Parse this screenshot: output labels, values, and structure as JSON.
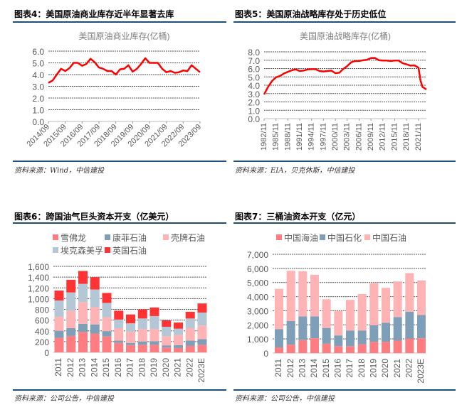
{
  "colors": {
    "rule": "#1F4E79",
    "line": "#FF0000"
  },
  "charts_meta": [
    {
      "label": "图表4：",
      "title": "美国原油商业库存近半年显著去库",
      "source": "资料来源：Wind，中信建投"
    },
    {
      "label": "图表5：",
      "title": "美国原油战略库存处于历史低位",
      "source": "资料来源：EIA，贝克休斯，中信建投"
    },
    {
      "label": "图表6：",
      "title": "跨国油气巨头资本开支（亿美元）",
      "source": "资料来源：公司公告，中信建投"
    },
    {
      "label": "图表7：",
      "title": "三桶油资本开支（亿元）",
      "source": "资料来源：公司公告，中信建投"
    }
  ],
  "chart_data": [
    {
      "type": "line",
      "title": "美国原油商业库存(亿桶)",
      "ylim": [
        0,
        6
      ],
      "yticks": [
        "0.0",
        "1.0",
        "2.0",
        "3.0",
        "4.0",
        "5.0",
        "6.0"
      ],
      "xticks": [
        "2014/09",
        "2015/09",
        "2016/09",
        "2017/09",
        "2018/09",
        "2019/09",
        "2020/09",
        "2021/09",
        "2022/09",
        "2023/09"
      ],
      "grid": true,
      "x": [
        "2014/09",
        "2014/12",
        "2015/03",
        "2015/06",
        "2015/09",
        "2015/12",
        "2016/03",
        "2016/06",
        "2016/09",
        "2016/12",
        "2017/03",
        "2017/06",
        "2017/09",
        "2017/12",
        "2018/03",
        "2018/06",
        "2018/09",
        "2018/12",
        "2019/03",
        "2019/06",
        "2019/09",
        "2019/12",
        "2020/03",
        "2020/06",
        "2020/09",
        "2020/12",
        "2021/03",
        "2021/06",
        "2021/09",
        "2021/12",
        "2022/03",
        "2022/06",
        "2022/09",
        "2022/12",
        "2023/03",
        "2023/06",
        "2023/09"
      ],
      "values": [
        3.3,
        3.5,
        4.0,
        4.5,
        4.3,
        4.55,
        5.0,
        5.0,
        4.75,
        4.9,
        5.35,
        5.05,
        4.6,
        4.5,
        4.3,
        4.3,
        4.0,
        4.45,
        4.5,
        4.8,
        4.25,
        4.5,
        4.9,
        5.4,
        5.0,
        5.0,
        5.0,
        4.5,
        4.2,
        4.3,
        4.15,
        4.2,
        4.35,
        4.3,
        4.8,
        4.5,
        4.2
      ],
      "color": "#FF0000"
    },
    {
      "type": "line",
      "title": "美国原油战略库存(亿桶)",
      "ylim": [
        0,
        8
      ],
      "yticks": [
        "0.0",
        "1.0",
        "2.0",
        "3.0",
        "4.0",
        "5.0",
        "6.0",
        "7.0",
        "8.0"
      ],
      "xticks": [
        "1982/11",
        "1985/11",
        "1988/11",
        "1991/11",
        "1994/11",
        "1997/11",
        "2000/11",
        "2003/11",
        "2006/11",
        "2009/11",
        "2012/11",
        "2015/11",
        "2018/11",
        "2021/11"
      ],
      "grid": true,
      "x": [
        "1982/11",
        "1983/11",
        "1984/11",
        "1985/11",
        "1986/11",
        "1987/11",
        "1988/11",
        "1989/11",
        "1990/11",
        "1991/11",
        "1992/11",
        "1993/11",
        "1994/11",
        "1995/11",
        "1996/11",
        "1997/11",
        "1998/11",
        "1999/11",
        "2000/11",
        "2001/11",
        "2002/11",
        "2003/11",
        "2004/11",
        "2005/11",
        "2006/11",
        "2007/11",
        "2008/11",
        "2009/11",
        "2010/11",
        "2011/11",
        "2012/11",
        "2013/11",
        "2014/11",
        "2015/11",
        "2016/11",
        "2017/11",
        "2018/11",
        "2019/11",
        "2020/11",
        "2021/11",
        "2022/05",
        "2022/11",
        "2023/11"
      ],
      "values": [
        2.9,
        3.8,
        4.5,
        4.95,
        5.1,
        5.4,
        5.6,
        5.8,
        5.9,
        5.7,
        5.75,
        5.9,
        5.92,
        5.92,
        5.7,
        5.65,
        5.7,
        5.75,
        5.45,
        5.5,
        5.95,
        6.3,
        6.75,
        6.9,
        6.9,
        7.0,
        7.05,
        7.25,
        7.27,
        7.0,
        6.95,
        6.95,
        6.9,
        6.95,
        6.95,
        6.65,
        6.5,
        6.35,
        6.38,
        6.1,
        4.6,
        3.8,
        3.5
      ],
      "color": "#FF0000"
    },
    {
      "type": "bar",
      "stacked": true,
      "ylim": [
        0,
        1600
      ],
      "yticks": [
        "0",
        "200",
        "400",
        "600",
        "800",
        "1,000",
        "1,200",
        "1,400",
        "1,600"
      ],
      "grid": true,
      "legend": "top",
      "categories": [
        "2011",
        "2012",
        "2013",
        "2014",
        "2015",
        "2016",
        "2017",
        "2018",
        "2019",
        "2020",
        "2021",
        "2022",
        "2023E"
      ],
      "series": [
        {
          "name": "雪佛龙",
          "color": "#FF7C80",
          "values": [
            270,
            305,
            380,
            350,
            295,
            175,
            135,
            140,
            140,
            90,
            80,
            120,
            140
          ]
        },
        {
          "name": "康菲石油",
          "color": "#7F9FB8",
          "values": [
            130,
            145,
            150,
            170,
            100,
            45,
            40,
            60,
            65,
            40,
            55,
            100,
            105
          ]
        },
        {
          "name": "壳牌石油",
          "color": "#FFB3B5",
          "values": [
            260,
            325,
            405,
            320,
            260,
            230,
            210,
            235,
            230,
            170,
            190,
            230,
            255
          ]
        },
        {
          "name": "埃克森美孚",
          "color": "#B4C7D7",
          "values": [
            305,
            340,
            340,
            330,
            265,
            160,
            155,
            195,
            240,
            175,
            115,
            180,
            240
          ]
        },
        {
          "name": "英国石油",
          "color": "#FF3333",
          "values": [
            185,
            235,
            240,
            230,
            185,
            165,
            165,
            170,
            160,
            120,
            115,
            125,
            170
          ]
        }
      ]
    },
    {
      "type": "bar",
      "stacked": true,
      "ylim": [
        0,
        7000
      ],
      "yticks": [
        "0",
        "1,000",
        "2,000",
        "3,000",
        "4,000",
        "5,000",
        "6,000",
        "7,000"
      ],
      "grid": true,
      "legend": "top",
      "categories": [
        "2011",
        "2012",
        "2013",
        "2014",
        "2015",
        "2016",
        "2017",
        "2018",
        "2019",
        "2020",
        "2021",
        "2022",
        "2023E"
      ],
      "series": [
        {
          "name": "中国海油",
          "color": "#FF7C80",
          "values": [
            400,
            600,
            920,
            1050,
            660,
            490,
            490,
            620,
            800,
            800,
            880,
            1020,
            1050
          ]
        },
        {
          "name": "中国石化",
          "color": "#7F9FB8",
          "values": [
            1300,
            1670,
            1680,
            1550,
            1120,
            760,
            1110,
            980,
            1170,
            1350,
            1670,
            1900,
            1650
          ]
        },
        {
          "name": "中国石油",
          "color": "#FFB3B5",
          "values": [
            2850,
            3560,
            3200,
            2950,
            2030,
            1730,
            2170,
            2580,
            2980,
            2470,
            2530,
            2750,
            2450
          ]
        }
      ]
    }
  ]
}
